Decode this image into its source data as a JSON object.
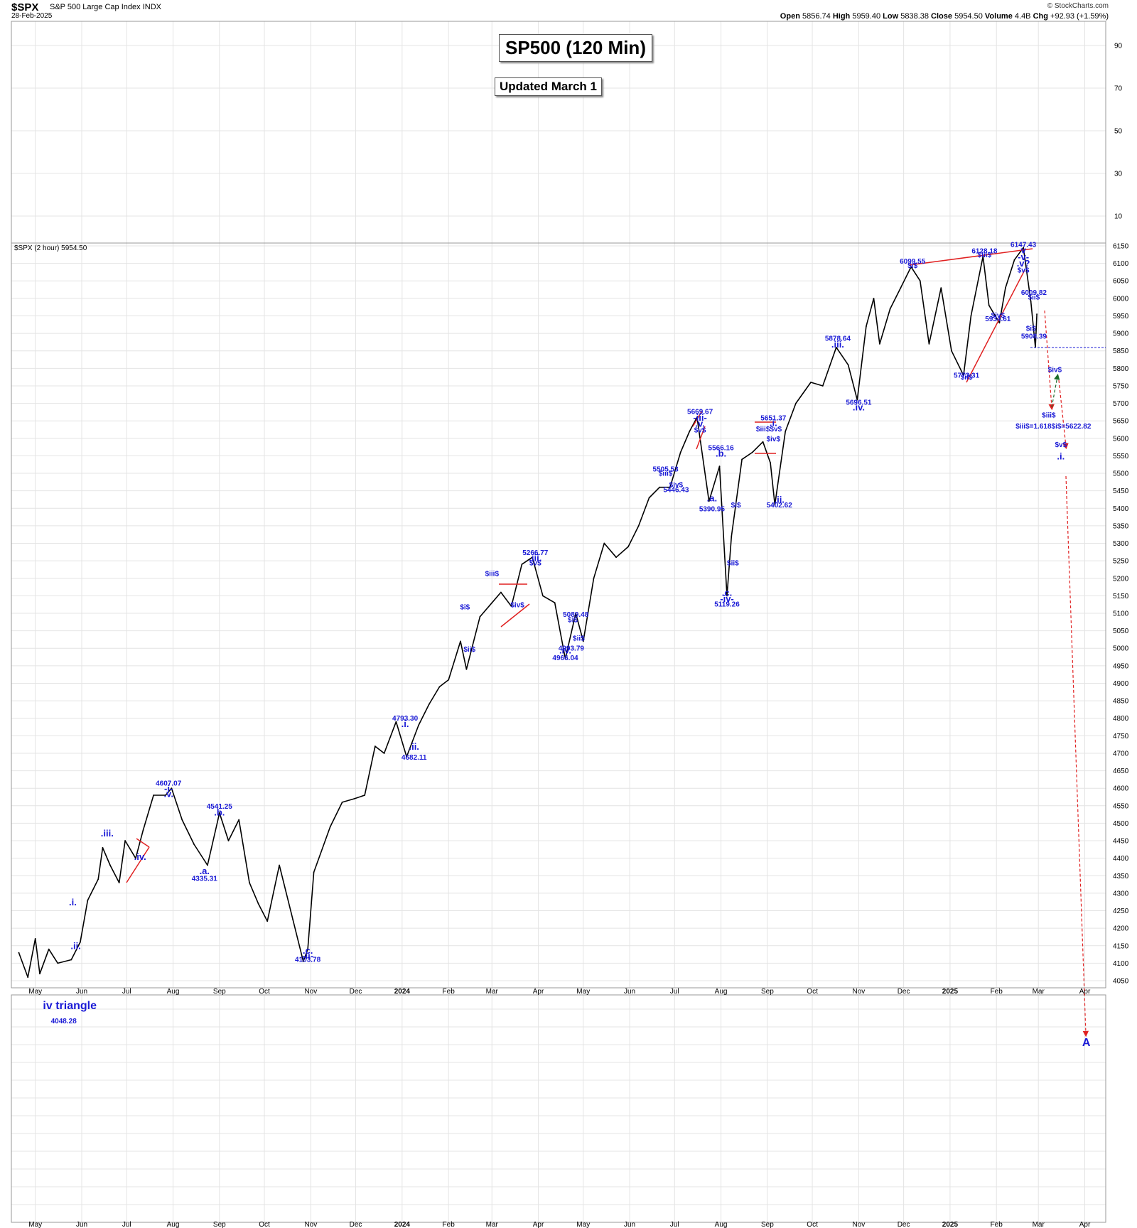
{
  "header": {
    "symbol": "$SPX",
    "name": "S&P 500 Large Cap Index",
    "exchange": "INDX",
    "date": "28-Feb-2025",
    "copyright": "© StockCharts.com",
    "open_label": "Open",
    "open": "5856.74",
    "high_label": "High",
    "high": "5959.40",
    "low_label": "Low",
    "low": "5838.38",
    "close_label": "Close",
    "close": "5954.50",
    "volume_label": "Volume",
    "volume": "4.4B",
    "chg_label": "Chg",
    "chg": "+92.93 (+1.59%)"
  },
  "boxes": {
    "title": "SP500 (120 Min)",
    "subtitle": "Updated March 1"
  },
  "colors": {
    "annotation": "#1a1ad6",
    "trendline": "#e02020",
    "arrow_red": "#e02020",
    "arrow_green": "#1a6b2a",
    "price": "#000000",
    "grid": "#e4e4e4"
  },
  "chart_data": {
    "type": "line",
    "legend": "$SPX (2 hour) 5954.50",
    "ylim": [
      4050,
      6150
    ],
    "yticks": [
      4050,
      4100,
      4150,
      4200,
      4250,
      4300,
      4350,
      4400,
      4450,
      4500,
      4550,
      4600,
      4650,
      4700,
      4750,
      4800,
      4850,
      4900,
      4950,
      5000,
      5050,
      5100,
      5150,
      5200,
      5250,
      5300,
      5350,
      5400,
      5450,
      5500,
      5550,
      5600,
      5650,
      5700,
      5750,
      5800,
      5850,
      5900,
      5950,
      6000,
      6050,
      6100,
      6150
    ],
    "upper_panel_yticks": [
      90,
      70,
      50,
      30,
      10
    ],
    "xticks": [
      {
        "t": "2023-05-01",
        "label": "May"
      },
      {
        "t": "2023-06-01",
        "label": "Jun"
      },
      {
        "t": "2023-07-01",
        "label": "Jul"
      },
      {
        "t": "2023-08-01",
        "label": "Aug"
      },
      {
        "t": "2023-09-01",
        "label": "Sep"
      },
      {
        "t": "2023-10-01",
        "label": "Oct"
      },
      {
        "t": "2023-11-01",
        "label": "Nov"
      },
      {
        "t": "2023-12-01",
        "label": "Dec"
      },
      {
        "t": "2024-01-01",
        "label": "2024"
      },
      {
        "t": "2024-02-01",
        "label": "Feb"
      },
      {
        "t": "2024-03-01",
        "label": "Mar"
      },
      {
        "t": "2024-04-01",
        "label": "Apr"
      },
      {
        "t": "2024-05-01",
        "label": "May"
      },
      {
        "t": "2024-06-01",
        "label": "Jun"
      },
      {
        "t": "2024-07-01",
        "label": "Jul"
      },
      {
        "t": "2024-08-01",
        "label": "Aug"
      },
      {
        "t": "2024-09-01",
        "label": "Sep"
      },
      {
        "t": "2024-10-01",
        "label": "Oct"
      },
      {
        "t": "2024-11-01",
        "label": "Nov"
      },
      {
        "t": "2024-12-01",
        "label": "Dec"
      },
      {
        "t": "2025-01-01",
        "label": "2025"
      },
      {
        "t": "2025-02-01",
        "label": "Feb"
      },
      {
        "t": "2025-03-01",
        "label": "Mar"
      },
      {
        "t": "2025-04-01",
        "label": "Apr"
      }
    ],
    "series": [
      {
        "values": [
          [
            "2023-04-20",
            4130
          ],
          [
            "2023-04-26",
            4060
          ],
          [
            "2023-05-01",
            4170
          ],
          [
            "2023-05-04",
            4070
          ],
          [
            "2023-05-10",
            4140
          ],
          [
            "2023-05-16",
            4100
          ],
          [
            "2023-05-25",
            4110
          ],
          [
            "2023-05-31",
            4160
          ],
          [
            "2023-06-05",
            4280
          ],
          [
            "2023-06-12",
            4340
          ],
          [
            "2023-06-15",
            4430
          ],
          [
            "2023-06-20",
            4380
          ],
          [
            "2023-06-26",
            4330
          ],
          [
            "2023-06-30",
            4450
          ],
          [
            "2023-07-07",
            4400
          ],
          [
            "2023-07-12",
            4480
          ],
          [
            "2023-07-19",
            4580
          ],
          [
            "2023-07-27",
            4580
          ],
          [
            "2023-07-31",
            4600
          ],
          [
            "2023-08-07",
            4510
          ],
          [
            "2023-08-15",
            4440
          ],
          [
            "2023-08-24",
            4380
          ],
          [
            "2023-08-31",
            4510
          ],
          [
            "2023-09-01",
            4530
          ],
          [
            "2023-09-07",
            4450
          ],
          [
            "2023-09-14",
            4510
          ],
          [
            "2023-09-21",
            4330
          ],
          [
            "2023-09-27",
            4270
          ],
          [
            "2023-10-03",
            4220
          ],
          [
            "2023-10-11",
            4380
          ],
          [
            "2023-10-20",
            4225
          ],
          [
            "2023-10-27",
            4105
          ],
          [
            "2023-10-30",
            4140
          ],
          [
            "2023-11-03",
            4360
          ],
          [
            "2023-11-14",
            4490
          ],
          [
            "2023-11-22",
            4560
          ],
          [
            "2023-11-30",
            4570
          ],
          [
            "2023-12-07",
            4580
          ],
          [
            "2023-12-14",
            4720
          ],
          [
            "2023-12-20",
            4700
          ],
          [
            "2023-12-28",
            4790
          ],
          [
            "2024-01-04",
            4690
          ],
          [
            "2024-01-12",
            4780
          ],
          [
            "2024-01-19",
            4840
          ],
          [
            "2024-01-26",
            4890
          ],
          [
            "2024-02-01",
            4910
          ],
          [
            "2024-02-09",
            5020
          ],
          [
            "2024-02-13",
            4940
          ],
          [
            "2024-02-22",
            5090
          ],
          [
            "2024-03-01",
            5130
          ],
          [
            "2024-03-07",
            5160
          ],
          [
            "2024-03-14",
            5120
          ],
          [
            "2024-03-21",
            5240
          ],
          [
            "2024-03-28",
            5260
          ],
          [
            "2024-04-04",
            5150
          ],
          [
            "2024-04-12",
            5130
          ],
          [
            "2024-04-19",
            4970
          ],
          [
            "2024-04-26",
            5100
          ],
          [
            "2024-05-01",
            5020
          ],
          [
            "2024-05-08",
            5200
          ],
          [
            "2024-05-15",
            5300
          ],
          [
            "2024-05-23",
            5260
          ],
          [
            "2024-05-31",
            5290
          ],
          [
            "2024-06-07",
            5350
          ],
          [
            "2024-06-14",
            5430
          ],
          [
            "2024-06-21",
            5460
          ],
          [
            "2024-06-28",
            5460
          ],
          [
            "2024-07-05",
            5560
          ],
          [
            "2024-07-11",
            5620
          ],
          [
            "2024-07-16",
            5660
          ],
          [
            "2024-07-24",
            5420
          ],
          [
            "2024-07-31",
            5520
          ],
          [
            "2024-08-05",
            5150
          ],
          [
            "2024-08-08",
            5320
          ],
          [
            "2024-08-15",
            5540
          ],
          [
            "2024-08-22",
            5560
          ],
          [
            "2024-08-29",
            5590
          ],
          [
            "2024-09-03",
            5530
          ],
          [
            "2024-09-06",
            5410
          ],
          [
            "2024-09-13",
            5620
          ],
          [
            "2024-09-20",
            5700
          ],
          [
            "2024-09-30",
            5760
          ],
          [
            "2024-10-08",
            5750
          ],
          [
            "2024-10-17",
            5860
          ],
          [
            "2024-10-25",
            5810
          ],
          [
            "2024-10-31",
            5710
          ],
          [
            "2024-11-06",
            5920
          ],
          [
            "2024-11-11",
            6000
          ],
          [
            "2024-11-15",
            5870
          ],
          [
            "2024-11-22",
            5970
          ],
          [
            "2024-11-29",
            6030
          ],
          [
            "2024-12-06",
            6090
          ],
          [
            "2024-12-12",
            6050
          ],
          [
            "2024-12-18",
            5870
          ],
          [
            "2024-12-26",
            6030
          ],
          [
            "2025-01-02",
            5850
          ],
          [
            "2025-01-10",
            5780
          ],
          [
            "2025-01-15",
            5950
          ],
          [
            "2025-01-23",
            6120
          ],
          [
            "2025-01-27",
            5980
          ],
          [
            "2025-02-03",
            5930
          ],
          [
            "2025-02-07",
            6030
          ],
          [
            "2025-02-13",
            6110
          ],
          [
            "2025-02-19",
            6145
          ],
          [
            "2025-02-24",
            5990
          ],
          [
            "2025-02-27",
            5860
          ],
          [
            "2025-02-28",
            5955
          ]
        ]
      }
    ],
    "wave_labels": [
      {
        "t": "2025-02-19",
        "y": 6147.43,
        "label": "6147.43"
      },
      {
        "t": "2025-02-19",
        "y": 6128.18,
        "label": "v"
      },
      {
        "t": "2025-02-19",
        "y": 6109,
        "label": "-v-"
      },
      {
        "t": "2025-02-19",
        "y": 6091,
        "label": ".v?"
      },
      {
        "t": "2025-02-19",
        "y": 6074,
        "label": "$v$"
      },
      {
        "t": "2024-12-07",
        "y": 6099.55,
        "label": "6099.55"
      },
      {
        "t": "2024-12-07",
        "y": 6087,
        "label": "$i$"
      },
      {
        "t": "2025-01-24",
        "y": 6128.18,
        "label": "6128.18"
      },
      {
        "t": "2025-01-24",
        "y": 6117,
        "label": "$iii$"
      },
      {
        "t": "2025-02-26",
        "y": 6009.82,
        "label": "6009.82"
      },
      {
        "t": "2025-02-26",
        "y": 5997,
        "label": "$ii$"
      },
      {
        "t": "2025-02-02",
        "y": 5945,
        "label": "$iv$"
      },
      {
        "t": "2025-02-02",
        "y": 5934.61,
        "label": "5934.61"
      },
      {
        "t": "2025-02-24",
        "y": 5907,
        "label": "$i$"
      },
      {
        "t": "2025-02-26",
        "y": 5885,
        "label": "5908.39"
      },
      {
        "t": "2025-01-12",
        "y": 5768,
        "label": "$ii$"
      },
      {
        "t": "2025-01-12",
        "y": 5773.31,
        "label": "5773.31"
      },
      {
        "t": "2024-10-18",
        "y": 5878.64,
        "label": "5878.64"
      },
      {
        "t": "2024-10-18",
        "y": 5860,
        "label": ".iii."
      },
      {
        "t": "2024-11-01",
        "y": 5680,
        "label": ".iv."
      },
      {
        "t": "2024-11-01",
        "y": 5696.51,
        "label": "5696.51"
      },
      {
        "t": "2024-07-18",
        "y": 5669.67,
        "label": "5669.67"
      },
      {
        "t": "2024-07-18",
        "y": 5650,
        "label": "-iii-"
      },
      {
        "t": "2024-07-18",
        "y": 5633,
        "label": ".v."
      },
      {
        "t": "2024-07-18",
        "y": 5617,
        "label": "$v$"
      },
      {
        "t": "2024-09-05",
        "y": 5651.37,
        "label": "5651.37"
      },
      {
        "t": "2024-09-05",
        "y": 5635,
        "label": ".i."
      },
      {
        "t": "2024-09-02",
        "y": 5620,
        "label": "$iii$$v$"
      },
      {
        "t": "2024-09-05",
        "y": 5591,
        "label": "$iv$"
      },
      {
        "t": "2024-08-01",
        "y": 5566.16,
        "label": "5566.16"
      },
      {
        "t": "2024-08-01",
        "y": 5548,
        "label": ".b."
      },
      {
        "t": "2024-06-25",
        "y": 5505.53,
        "label": "5505.53"
      },
      {
        "t": "2024-06-25",
        "y": 5493,
        "label": "$iii$"
      },
      {
        "t": "2024-07-02",
        "y": 5460,
        "label": "$iv$"
      },
      {
        "t": "2024-07-02",
        "y": 5446.43,
        "label": "5446.43"
      },
      {
        "t": "2024-07-26",
        "y": 5420,
        "label": ".a."
      },
      {
        "t": "2024-07-26",
        "y": 5390.95,
        "label": "5390.95"
      },
      {
        "t": "2024-08-11",
        "y": 5403,
        "label": "$i$"
      },
      {
        "t": "2024-09-09",
        "y": 5416,
        "label": ".ii."
      },
      {
        "t": "2024-09-09",
        "y": 5402.62,
        "label": "5402.62"
      },
      {
        "t": "2024-08-09",
        "y": 5237,
        "label": "$ii$"
      },
      {
        "t": "2024-08-05",
        "y": 5150,
        "label": ".c."
      },
      {
        "t": "2024-08-05",
        "y": 5133,
        "label": "-iv-"
      },
      {
        "t": "2024-08-05",
        "y": 5119.26,
        "label": "5119.26"
      },
      {
        "t": "2024-03-30",
        "y": 5266.77,
        "label": "5266.77"
      },
      {
        "t": "2024-03-30",
        "y": 5249,
        "label": ".iii."
      },
      {
        "t": "2024-03-30",
        "y": 5237,
        "label": "$v$"
      },
      {
        "t": "2024-03-01",
        "y": 5207,
        "label": "$iii$"
      },
      {
        "t": "2024-03-18",
        "y": 5117,
        "label": "$iv$"
      },
      {
        "t": "2024-02-12",
        "y": 5111,
        "label": "$i$"
      },
      {
        "t": "2024-02-15",
        "y": 4990,
        "label": "$ii$"
      },
      {
        "t": "2024-04-26",
        "y": 5089.48,
        "label": "5089.48"
      },
      {
        "t": "2024-04-24",
        "y": 5075,
        "label": "$i$"
      },
      {
        "t": "2024-04-28",
        "y": 5022,
        "label": "$ii$"
      },
      {
        "t": "2024-04-23",
        "y": 4993.79,
        "label": "4993.79"
      },
      {
        "t": "2024-04-19",
        "y": 4985,
        "label": ".iv."
      },
      {
        "t": "2024-04-19",
        "y": 4966.04,
        "label": "4966.04"
      },
      {
        "t": "2024-01-03",
        "y": 4793.3,
        "label": "4793.30"
      },
      {
        "t": "2024-01-03",
        "y": 4775,
        "label": ".i."
      },
      {
        "t": "2024-01-09",
        "y": 4710,
        "label": ".ii."
      },
      {
        "t": "2024-01-09",
        "y": 4682.11,
        "label": "4682.11"
      },
      {
        "t": "2023-07-29",
        "y": 4607.07,
        "label": "4607.07"
      },
      {
        "t": "2023-07-29",
        "y": 4590,
        "label": "-i-"
      },
      {
        "t": "2023-07-29",
        "y": 4575,
        "label": ".v."
      },
      {
        "t": "2023-09-01",
        "y": 4541.25,
        "label": "4541.25"
      },
      {
        "t": "2023-09-01",
        "y": 4522,
        "label": ".b."
      },
      {
        "t": "2023-08-22",
        "y": 4355,
        "label": ".a."
      },
      {
        "t": "2023-08-22",
        "y": 4335.31,
        "label": "4335.31"
      },
      {
        "t": "2023-06-18",
        "y": 4462,
        "label": ".iii."
      },
      {
        "t": "2023-07-10",
        "y": 4395,
        "label": ".iv."
      },
      {
        "t": "2023-05-26",
        "y": 4265,
        "label": ".i."
      },
      {
        "t": "2023-05-28",
        "y": 4140,
        "label": ".ii."
      },
      {
        "t": "2023-10-30",
        "y": 4127,
        "label": ".c."
      },
      {
        "t": "2023-10-30",
        "y": 4112,
        "label": "-ii-"
      },
      {
        "t": "2023-10-30",
        "y": 4103.78,
        "label": "4103.78"
      },
      {
        "t": "2025-03-12",
        "y": 5790,
        "label": "$iv$"
      },
      {
        "t": "2025-03-08",
        "y": 5660,
        "label": "$iii$"
      },
      {
        "t": "2025-03-11",
        "y": 5628,
        "label": "$iii$=1.618$i$=5622.82"
      },
      {
        "t": "2025-03-16",
        "y": 5575,
        "label": "$v$"
      },
      {
        "t": "2025-03-16",
        "y": 5540,
        "label": ".i."
      }
    ],
    "lower_labels": [
      {
        "t": "2023-05-24",
        "label": "iv triangle"
      },
      {
        "t": "2023-05-20",
        "label": "4048.28"
      },
      {
        "t": "2025-04-02",
        "label": "A"
      }
    ]
  }
}
